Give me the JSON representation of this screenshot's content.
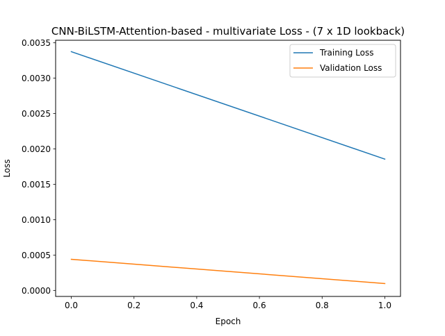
{
  "chart_data": {
    "type": "line",
    "title": "CNN-BiLSTM-Attention-based - multivariate Loss - (7 x 1D lookback)",
    "xlabel": "Epoch",
    "ylabel": "Loss",
    "xlim": [
      -0.05,
      1.05
    ],
    "ylim": [
      -8.5e-05,
      0.003536
    ],
    "xticks": [
      0.0,
      0.2,
      0.4,
      0.6,
      0.8,
      1.0
    ],
    "xtick_labels": [
      "0.0",
      "0.2",
      "0.4",
      "0.6",
      "0.8",
      "1.0"
    ],
    "yticks": [
      0.0,
      0.0005,
      0.001,
      0.0015,
      0.002,
      0.0025,
      0.003,
      0.0035
    ],
    "ytick_labels": [
      "0.0000",
      "0.0005",
      "0.0010",
      "0.0015",
      "0.0020",
      "0.0025",
      "0.0030",
      "0.0035"
    ],
    "grid": false,
    "legend_position": "top-right",
    "x": [
      0,
      1
    ],
    "series": [
      {
        "name": "Training Loss",
        "color": "#1f77b4",
        "values": [
          0.003375,
          0.001856
        ]
      },
      {
        "name": "Validation Loss",
        "color": "#ff7f0e",
        "values": [
          0.00044,
          9.7e-05
        ]
      }
    ]
  }
}
